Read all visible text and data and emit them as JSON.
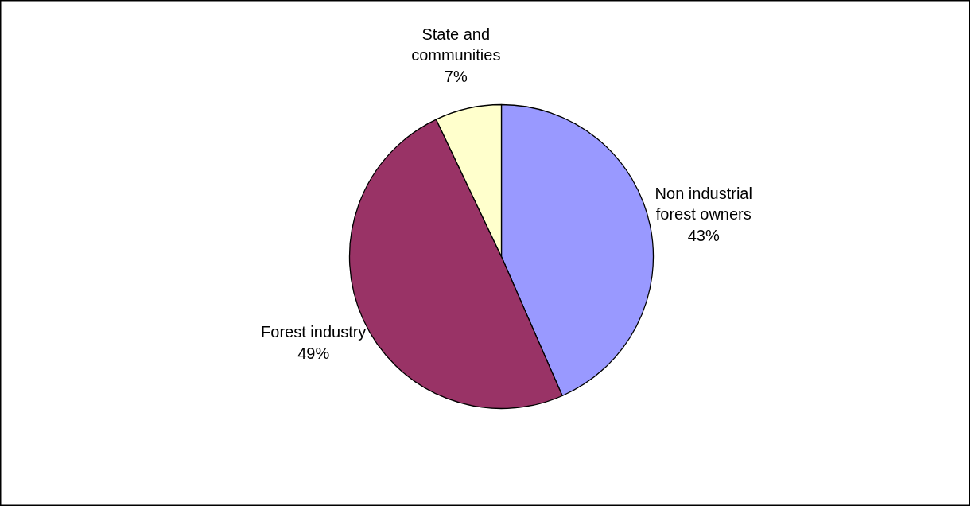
{
  "chart_data": {
    "type": "pie",
    "categories": [
      "Non industrial forest owners",
      "Forest industry",
      "State and communities"
    ],
    "values": [
      43,
      49,
      7
    ],
    "value_labels": [
      "43%",
      "49%",
      "7%"
    ],
    "colors": [
      "#9999ff",
      "#993366",
      "#ffffcc"
    ]
  }
}
